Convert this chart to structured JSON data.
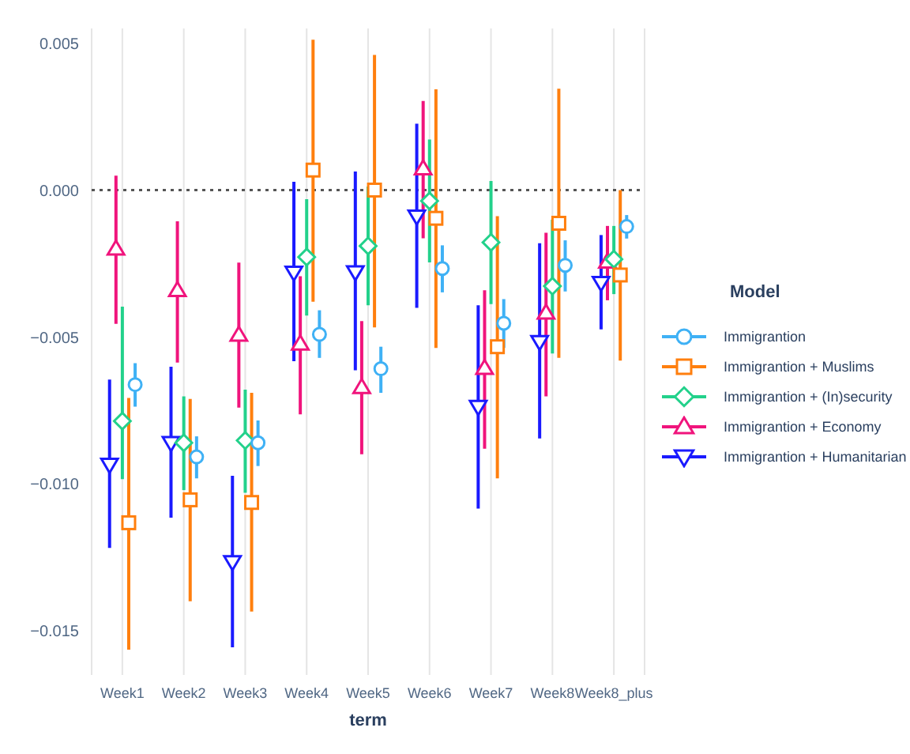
{
  "chart_data": {
    "type": "scatter",
    "xlabel": "term",
    "legend_title": "Model",
    "legend": "right",
    "grid": "x",
    "categories": [
      "Week1",
      "Week2",
      "Week3",
      "Week4",
      "Week5",
      "Week6",
      "Week7",
      "Week8",
      "Week8_plus"
    ],
    "ylim": [
      -0.0165,
      0.0055
    ],
    "yticks": [
      {
        "value": 0.005,
        "label": "0.005"
      },
      {
        "value": 0,
        "label": "0.000"
      },
      {
        "value": -0.005,
        "label": "−0.005"
      },
      {
        "value": -0.01,
        "label": "−0.010"
      },
      {
        "value": -0.015,
        "label": "−0.015"
      }
    ],
    "ref_lines": [
      {
        "axis": "y",
        "value": 0,
        "label": null,
        "color": "#555555",
        "line_style": "dotted"
      }
    ],
    "series": [
      {
        "name": "Immigrantion",
        "color": "#3fb1f5",
        "marker": "circle",
        "values": [
          -0.00662,
          -0.00908,
          -0.0086,
          -0.00491,
          -0.00608,
          -0.00267,
          -0.00453,
          -0.00256,
          -0.00124
        ],
        "errors": [
          [
            -0.00737,
            -0.00589
          ],
          [
            -0.00981,
            -0.00838
          ],
          [
            -0.00939,
            -0.00784
          ],
          [
            -0.00571,
            -0.00409
          ],
          [
            -0.0069,
            -0.00533
          ],
          [
            -0.00348,
            -0.00188
          ],
          [
            -0.00537,
            -0.00371
          ],
          [
            -0.00345,
            -0.00171
          ],
          [
            -0.00165,
            -0.00085
          ]
        ]
      },
      {
        "name": "Immigrantion + Muslims",
        "color": "#ff7f0e",
        "marker": "square",
        "values": [
          -0.01132,
          -0.01054,
          -0.01063,
          0.00068,
          0,
          -0.00096,
          -0.00533,
          -0.00113,
          -0.00289
        ],
        "errors": [
          [
            -0.01564,
            -0.00707
          ],
          [
            -0.01399,
            -0.00711
          ],
          [
            -0.01434,
            -0.0069
          ],
          [
            -0.0038,
            0.00512
          ],
          [
            -0.00467,
            0.0046
          ],
          [
            -0.00537,
            0.00343
          ],
          [
            -0.00981,
            -0.00089
          ],
          [
            -0.00571,
            0.00345
          ],
          [
            -0.0058,
            0
          ]
        ]
      },
      {
        "name": "Immigrantion + (In)security",
        "color": "#23d18b",
        "marker": "diamond",
        "values": [
          -0.00786,
          -0.0086,
          -0.00852,
          -0.00228,
          -0.0019,
          -0.00037,
          -0.00178,
          -0.00327,
          -0.00235
        ],
        "errors": [
          [
            -0.00984,
            -0.00397
          ],
          [
            -0.01021,
            -0.00702
          ],
          [
            -0.0103,
            -0.00679
          ],
          [
            -0.00427,
            -0.00031
          ],
          [
            -0.00392,
            0.00012
          ],
          [
            -0.00246,
            0.00172
          ],
          [
            -0.00388,
            0.00031
          ],
          [
            -0.00556,
            -0.00101
          ],
          [
            -0.00354,
            -0.00122
          ]
        ]
      },
      {
        "name": "Immigrantion + Economy",
        "color": "#f0147c",
        "marker": "triangle",
        "values": [
          -0.002,
          -0.00341,
          -0.00493,
          -0.00523,
          -0.00671,
          0.00073,
          -0.00606,
          -0.00418,
          -0.00244
        ],
        "errors": [
          [
            -0.00455,
            0.00049
          ],
          [
            -0.00587,
            -0.00106
          ],
          [
            -0.0074,
            -0.00247
          ],
          [
            -0.00763,
            -0.00293
          ],
          [
            -0.00899,
            -0.00446
          ],
          [
            -0.00164,
            0.00303
          ],
          [
            -0.0088,
            -0.00341
          ],
          [
            -0.00702,
            -0.00145
          ],
          [
            -0.00375,
            -0.00122
          ]
        ]
      },
      {
        "name": "Immigrantion + Humanitarian",
        "color": "#1a1aff",
        "marker": "triangle-down",
        "values": [
          -0.00934,
          -0.0086,
          -0.01265,
          -0.0028,
          -0.00279,
          -0.00089,
          -0.00737,
          -0.00516,
          -0.00315
        ],
        "errors": [
          [
            -0.01218,
            -0.00645
          ],
          [
            -0.01115,
            -0.00601
          ],
          [
            -0.01556,
            -0.00972
          ],
          [
            -0.00582,
            0.00028
          ],
          [
            -0.00613,
            0.00063
          ],
          [
            -0.00401,
            0.00226
          ],
          [
            -0.01084,
            -0.00392
          ],
          [
            -0.00845,
            -0.00181
          ],
          [
            -0.00474,
            -0.00153
          ]
        ]
      }
    ]
  }
}
